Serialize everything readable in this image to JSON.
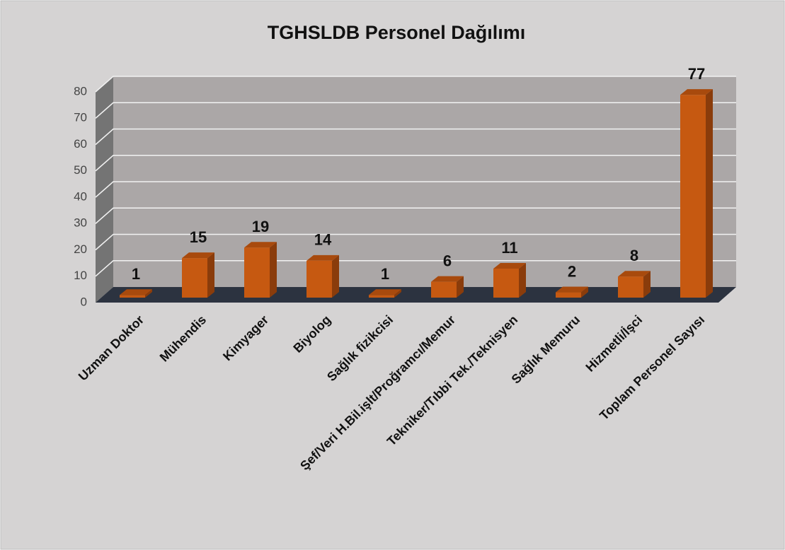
{
  "chart_data": {
    "type": "bar3d",
    "title": "TGHSLDB Personel Dağılımı",
    "categories": [
      "Uzman Doktor",
      "Mühendis",
      "Kimyager",
      "Biyolog",
      "Sağlık fizikcisi",
      "Şef/Veri H.Bil.işlt/Proğramcı/Memur",
      "Tekniker/Tıbbi Tek./Teknisyen",
      "Sağlık Memuru",
      "Hizmetli/İşci",
      "Toplam Personel Sayısı"
    ],
    "values": [
      1,
      15,
      19,
      14,
      1,
      6,
      11,
      2,
      8,
      77
    ],
    "color": "#c65911",
    "ylim": [
      0,
      80
    ],
    "yticks": [
      0,
      10,
      20,
      30,
      40,
      50,
      60,
      70,
      80
    ],
    "grid": true
  }
}
